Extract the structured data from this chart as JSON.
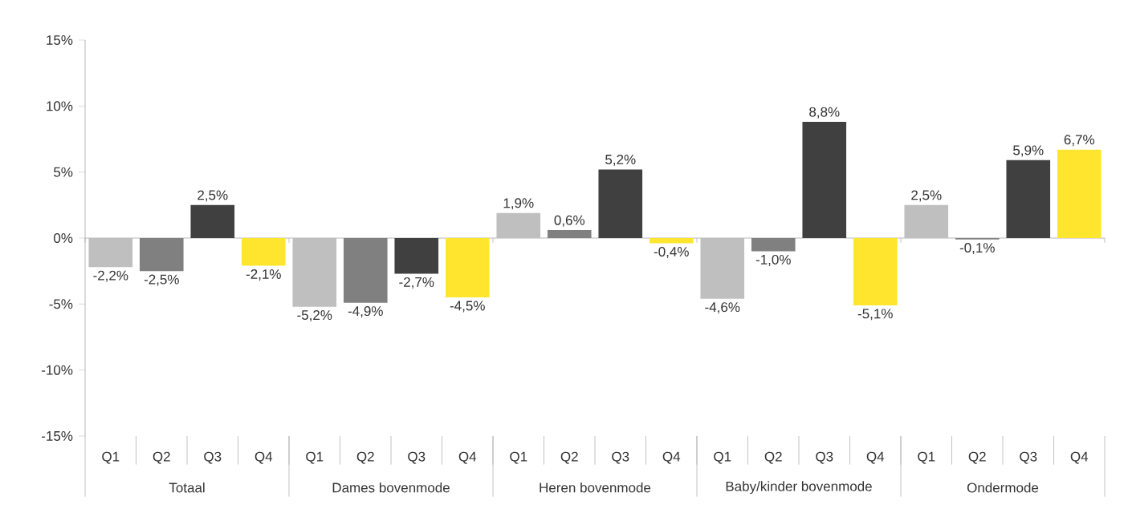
{
  "chart_data": {
    "type": "bar",
    "categories": [
      "Q1",
      "Q2",
      "Q3",
      "Q4",
      "Q1",
      "Q2",
      "Q3",
      "Q4",
      "Q1",
      "Q2",
      "Q3",
      "Q4",
      "Q1",
      "Q2",
      "Q3",
      "Q4",
      "Q1",
      "Q2",
      "Q3",
      "Q4"
    ],
    "values": [
      -2.2,
      -2.5,
      2.5,
      -2.1,
      -5.2,
      -4.9,
      -2.7,
      -4.5,
      1.9,
      0.6,
      5.2,
      -0.4,
      -4.6,
      -1.0,
      8.8,
      -5.1,
      2.5,
      -0.1,
      5.9,
      6.7
    ],
    "value_labels": [
      "-2,2%",
      "-2,5%",
      "2,5%",
      "-2,1%",
      "-5,2%",
      "-4,9%",
      "-2,7%",
      "-4,5%",
      "1,9%",
      "0,6%",
      "5,2%",
      "-0,4%",
      "-4,6%",
      "-1,0%",
      "8,8%",
      "-5,1%",
      "2,5%",
      "-0,1%",
      "5,9%",
      "6,7%"
    ],
    "colors": [
      "#bfbfbf",
      "#808080",
      "#404040",
      "#ffe52e",
      "#bfbfbf",
      "#808080",
      "#404040",
      "#ffe52e",
      "#bfbfbf",
      "#808080",
      "#404040",
      "#ffe52e",
      "#bfbfbf",
      "#808080",
      "#404040",
      "#ffe52e",
      "#bfbfbf",
      "#808080",
      "#404040",
      "#ffe52e"
    ],
    "annotations": [
      "Totaal",
      "Dames bovenmode",
      "Heren bovenmode",
      "Baby/kinder bovenmode",
      "Ondermode"
    ],
    "ylim": [
      -15,
      15
    ],
    "yticks": [
      {
        "value": -15,
        "label": "-15%"
      },
      {
        "value": -10,
        "label": "-10%"
      },
      {
        "value": -5,
        "label": "-5%"
      },
      {
        "value": 0,
        "label": "0%"
      },
      {
        "value": 5,
        "label": "5%"
      },
      {
        "value": 10,
        "label": "10%"
      },
      {
        "value": 15,
        "label": "15%"
      }
    ]
  }
}
